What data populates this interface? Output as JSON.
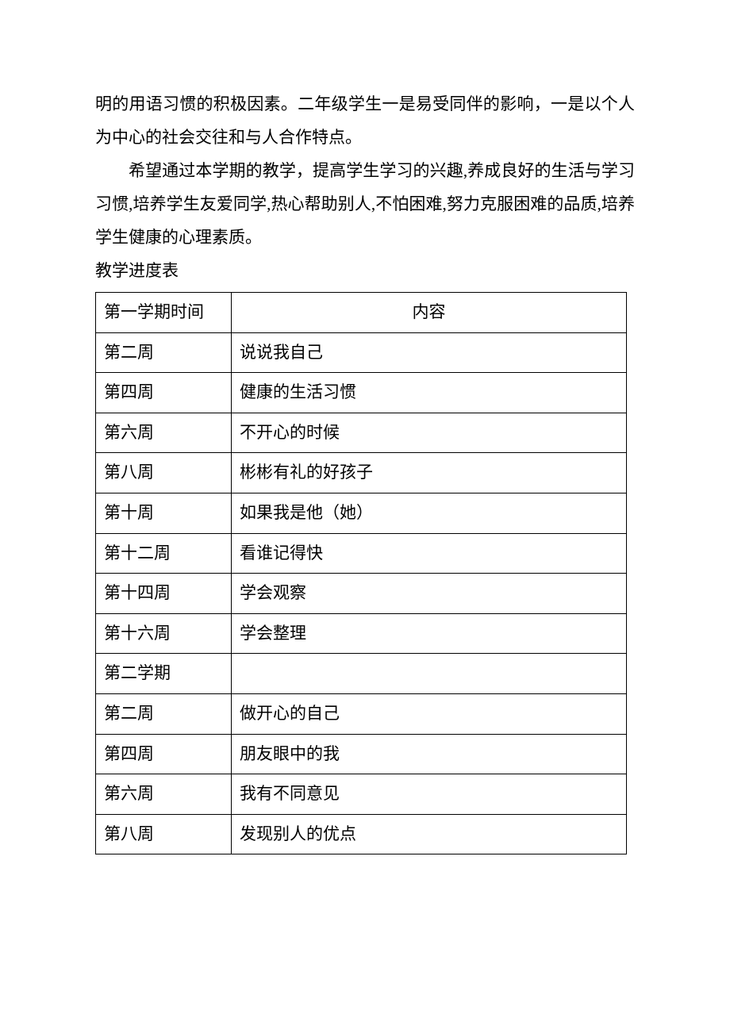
{
  "paragraphs": {
    "p1": "明的用语习惯的积极因素。二年级学生一是易受同伴的影响，一是以个人为中心的社会交往和与人合作特点。",
    "p2": "希望通过本学期的教学，提高学生学习的兴趣,养成良好的生活与学习习惯,培养学生友爱同学,热心帮助别人,不怕困难,努力克服困难的品质,培养学生健康的心理素质。",
    "label": "教学进度表"
  },
  "table": {
    "header": {
      "time": "第一学期时间",
      "content": "内容"
    },
    "rows": [
      {
        "time": "第二周",
        "content": "说说我自己"
      },
      {
        "time": "第四周",
        "content": "健康的生活习惯"
      },
      {
        "time": "第六周",
        "content": "不开心的时候"
      },
      {
        "time": "第八周",
        "content": "彬彬有礼的好孩子"
      },
      {
        "time": "第十周",
        "content": "如果我是他（她）"
      },
      {
        "time": "第十二周",
        "content": "看谁记得快"
      },
      {
        "time": "第十四周",
        "content": "学会观察"
      },
      {
        "time": "第十六周",
        "content": "学会整理"
      },
      {
        "time": "第二学期",
        "content": ""
      },
      {
        "time": "第二周",
        "content": "做开心的自己"
      },
      {
        "time": "第四周",
        "content": "朋友眼中的我"
      },
      {
        "time": "第六周",
        "content": "我有不同意见"
      },
      {
        "time": "第八周",
        "content": "发现别人的优点"
      }
    ]
  }
}
